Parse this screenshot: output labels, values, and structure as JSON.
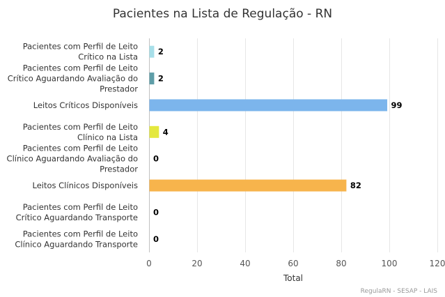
{
  "chart_data": {
    "type": "bar",
    "orientation": "horizontal",
    "title": "Pacientes na Lista de Regulação - RN",
    "xlabel": "Total",
    "ylabel": "",
    "xlim": [
      0,
      120
    ],
    "ticks": [
      0,
      20,
      40,
      60,
      80,
      100,
      120
    ],
    "grid": true,
    "credit": "RegulaRN - SESAP - LAIS",
    "categories": [
      [
        "Pacientes com Perfil de Leito",
        "Crítico na Lista"
      ],
      [
        "Pacientes com Perfil de Leito",
        "Crítico Aguardando Avaliação do",
        "Prestador"
      ],
      [
        "Leitos Críticos Disponíveis"
      ],
      [
        "Pacientes com Perfil de Leito",
        "Clínico na Lista"
      ],
      [
        "Pacientes com Perfil de Leito",
        "Clínico Aguardando Avaliação do",
        "Prestador"
      ],
      [
        "Leitos Clínicos Disponíveis"
      ],
      [
        "Pacientes com Perfil de Leito",
        "Crítico Aguardando Transporte"
      ],
      [
        "Pacientes com Perfil de Leito",
        "Clínico Aguardando Transporte"
      ]
    ],
    "values": [
      2,
      2,
      99,
      4,
      0,
      82,
      0,
      0
    ],
    "colors": [
      "#a7dfe9",
      "#5f9ea8",
      "#7cb5ec",
      "#e4e83e",
      "#7cb5ec",
      "#f7b44c",
      "#7cb5ec",
      "#7cb5ec"
    ]
  }
}
